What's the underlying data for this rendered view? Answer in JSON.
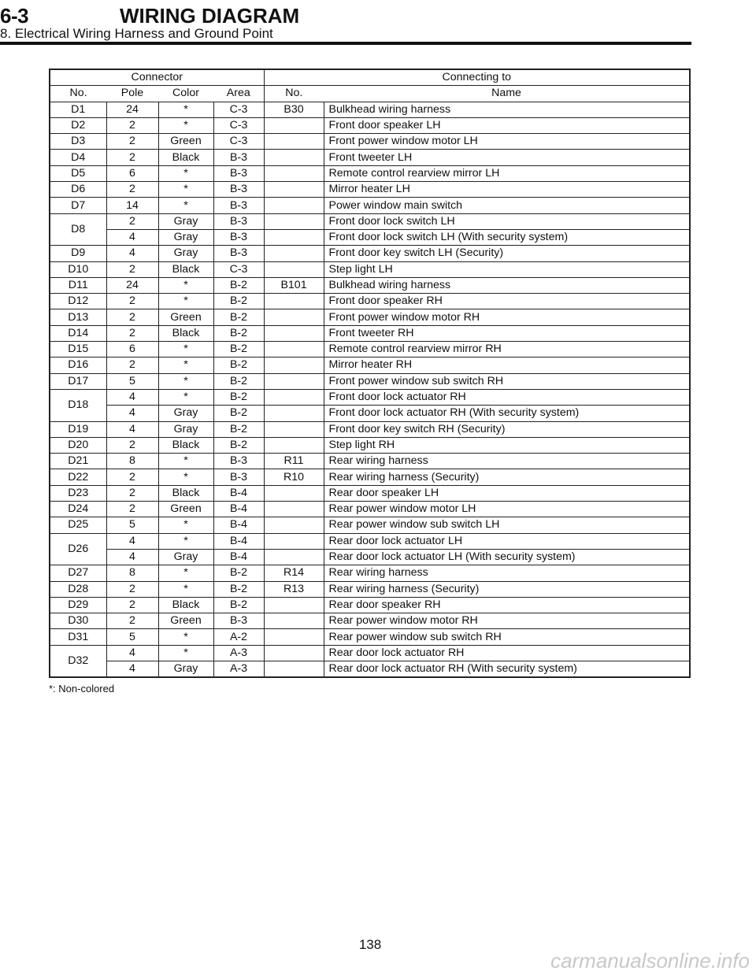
{
  "header": {
    "section": "6-3",
    "title": "WIRING DIAGRAM",
    "subtitle": "8. Electrical Wiring Harness and Ground Point"
  },
  "table": {
    "group_headers": {
      "connector": "Connector",
      "connecting_to": "Connecting to"
    },
    "columns": [
      "No.",
      "Pole",
      "Color",
      "Area",
      "No.",
      "Name"
    ],
    "rows": [
      [
        "D1",
        "24",
        "*",
        "C-3",
        "B30",
        "Bulkhead wiring harness"
      ],
      [
        "D2",
        "2",
        "*",
        "C-3",
        "",
        "Front door speaker LH"
      ],
      [
        "D3",
        "2",
        "Green",
        "C-3",
        "",
        "Front power window motor LH"
      ],
      [
        "D4",
        "2",
        "Black",
        "B-3",
        "",
        "Front tweeter LH"
      ],
      [
        "D5",
        "6",
        "*",
        "B-3",
        "",
        "Remote control rearview mirror LH"
      ],
      [
        "D6",
        "2",
        "*",
        "B-3",
        "",
        "Mirror heater LH"
      ],
      [
        "D7",
        "14",
        "*",
        "B-3",
        "",
        "Power window main switch"
      ],
      [
        "D8",
        "2",
        "Gray",
        "B-3",
        "",
        "Front door lock switch LH"
      ],
      [
        "",
        "4",
        "Gray",
        "B-3",
        "",
        "Front door lock switch LH (With security system)"
      ],
      [
        "D9",
        "4",
        "Gray",
        "B-3",
        "",
        "Front door key switch LH (Security)"
      ],
      [
        "D10",
        "2",
        "Black",
        "C-3",
        "",
        "Step light LH"
      ],
      [
        "D11",
        "24",
        "*",
        "B-2",
        "B101",
        "Bulkhead wiring harness"
      ],
      [
        "D12",
        "2",
        "*",
        "B-2",
        "",
        "Front door speaker RH"
      ],
      [
        "D13",
        "2",
        "Green",
        "B-2",
        "",
        "Front power window motor RH"
      ],
      [
        "D14",
        "2",
        "Black",
        "B-2",
        "",
        "Front tweeter RH"
      ],
      [
        "D15",
        "6",
        "*",
        "B-2",
        "",
        "Remote control rearview mirror RH"
      ],
      [
        "D16",
        "2",
        "*",
        "B-2",
        "",
        "Mirror heater RH"
      ],
      [
        "D17",
        "5",
        "*",
        "B-2",
        "",
        "Front power window sub switch RH"
      ],
      [
        "D18",
        "4",
        "*",
        "B-2",
        "",
        "Front door lock actuator RH"
      ],
      [
        "",
        "4",
        "Gray",
        "B-2",
        "",
        "Front door lock actuator RH (With security system)"
      ],
      [
        "D19",
        "4",
        "Gray",
        "B-2",
        "",
        "Front door key switch RH (Security)"
      ],
      [
        "D20",
        "2",
        "Black",
        "B-2",
        "",
        "Step light RH"
      ],
      [
        "D21",
        "8",
        "*",
        "B-3",
        "R11",
        "Rear wiring harness"
      ],
      [
        "D22",
        "2",
        "*",
        "B-3",
        "R10",
        "Rear wiring harness (Security)"
      ],
      [
        "D23",
        "2",
        "Black",
        "B-4",
        "",
        "Rear door speaker LH"
      ],
      [
        "D24",
        "2",
        "Green",
        "B-4",
        "",
        "Rear power window motor LH"
      ],
      [
        "D25",
        "5",
        "*",
        "B-4",
        "",
        "Rear power window sub switch LH"
      ],
      [
        "D26",
        "4",
        "*",
        "B-4",
        "",
        "Rear door lock actuator LH"
      ],
      [
        "",
        "4",
        "Gray",
        "B-4",
        "",
        "Rear door lock actuator LH (With security system)"
      ],
      [
        "D27",
        "8",
        "*",
        "B-2",
        "R14",
        "Rear wiring harness"
      ],
      [
        "D28",
        "2",
        "*",
        "B-2",
        "R13",
        "Rear wiring harness (Security)"
      ],
      [
        "D29",
        "2",
        "Black",
        "B-2",
        "",
        "Rear door speaker RH"
      ],
      [
        "D30",
        "2",
        "Green",
        "B-3",
        "",
        "Rear power window motor RH"
      ],
      [
        "D31",
        "5",
        "*",
        "A-2",
        "",
        "Rear power window sub switch RH"
      ],
      [
        "D32",
        "4",
        "*",
        "A-3",
        "",
        "Rear door lock actuator RH"
      ],
      [
        "",
        "4",
        "Gray",
        "A-3",
        "",
        "Rear door lock actuator RH (With security system)"
      ]
    ]
  },
  "footnote": "*: Non-colored",
  "page_number": "138",
  "watermark": "carmanualsonline.info"
}
